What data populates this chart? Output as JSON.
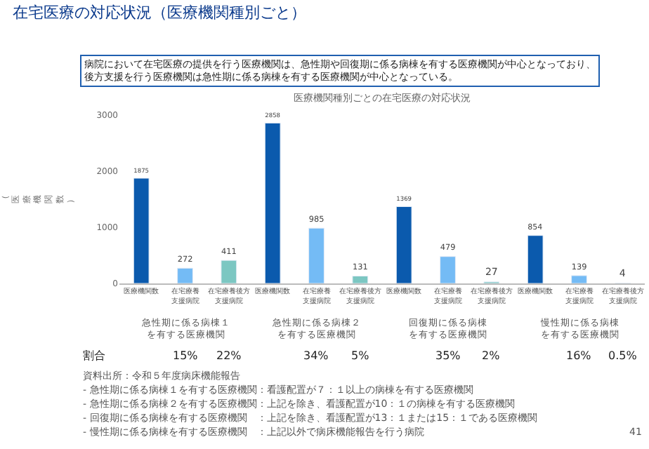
{
  "chart_data": {
    "type": "bar",
    "title": "在宅医療の対応状況（医療機関種別ごと）",
    "subtitle": "病院において在宅医療の提供を行う医療機関は、急性期や回復期に係る病棟を有する医療機関が中心となっており、後方支援を行う医療機関は急性期に係る病棟を有する医療機関が中心となっている。",
    "ylabel": "（医療機関数）",
    "categories": [
      "医療機関数",
      "在宅療養支援病院",
      "在宅療養後方支援病院",
      "医療機関数",
      "在宅療養支援病院",
      "在宅療養後方支援病院",
      "医療機関数",
      "在宅療養支援病院",
      "在宅療養後方支援病院",
      "医療機関数",
      "在宅療養支援病院",
      "在宅療養後方支援病院"
    ],
    "values": [
      1875,
      272,
      411,
      2858,
      985,
      131,
      1369,
      479,
      27,
      854,
      139,
      4
    ],
    "colors": [
      "#0b5aad",
      "#74bbf5",
      "#7cc7c2",
      "#0b5aad",
      "#74bbf5",
      "#7cc7c2",
      "#0b5aad",
      "#74bbf5",
      "#7cc7c2",
      "#0b5aad",
      "#74bbf5",
      "#7cc7c2"
    ],
    "ylim": [
      0,
      3000
    ],
    "yticks": [
      0,
      1000,
      2000,
      3000
    ],
    "legend": false,
    "data_labels": true,
    "annotations": [
      "医療機関種別ごとの在宅医療の対応状況",
      "急性期に係る病棟１を有する医療機関",
      "急性期に係る病棟２を有する医療機関",
      "回復期に係る病棟を有する医療機関",
      "慢性期に係る病棟を有する医療機関",
      "割合",
      "15%",
      "22%",
      "34%",
      "5%",
      "35%",
      "2%",
      "16%",
      "0.5%",
      "資料出所：令和５年度病床機能報告",
      "- 急性期に係る病棟１を有する医療機関：看護配置が７：１以上の病棟を有する医療機関",
      "- 急性期に係る病棟２を有する医療機関：上記を除き、看護配置が10：１の病棟を有する医療機関",
      "- 回復期に係る病棟を有する医療機関　：上記を除き、看護配置が13：１または15：１である医療機関",
      "- 慢性期に係る病棟を有する医療機関　：上記以外で病床機能報告を行う病院",
      "41"
    ]
  }
}
